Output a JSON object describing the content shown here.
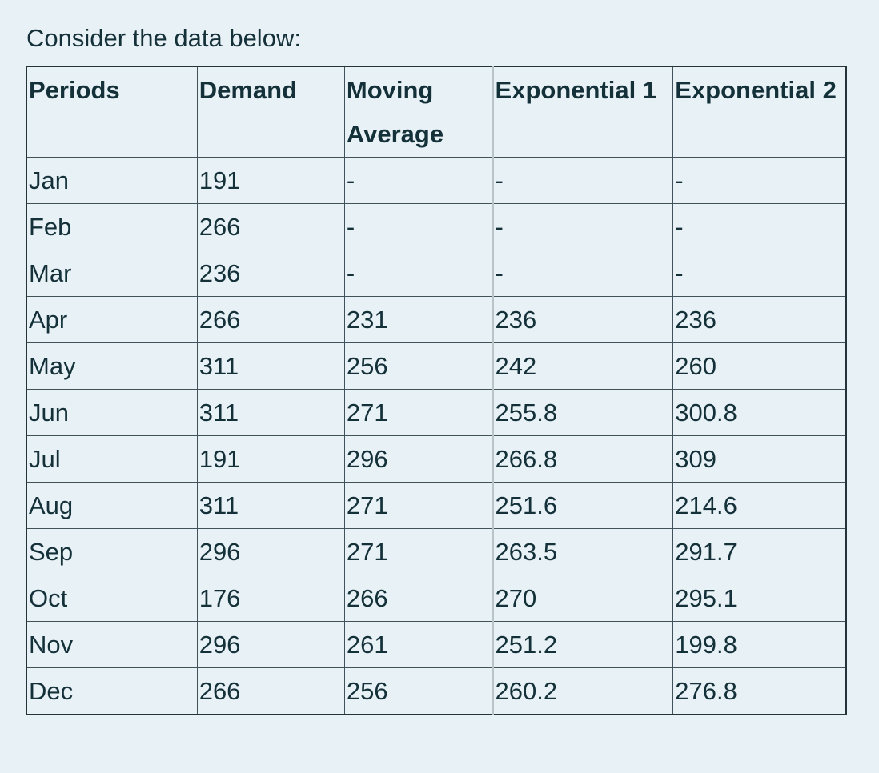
{
  "colors": {
    "background": "#e8f1f5",
    "text": "#14313a",
    "border_outer": "#25333a",
    "border_inner": "#42525a",
    "border_light": "#b9c4c8"
  },
  "page": {
    "title": "Consider the data below:"
  },
  "table": {
    "columns": [
      {
        "key": "periods",
        "label": "Periods"
      },
      {
        "key": "demand",
        "label": "Demand"
      },
      {
        "key": "moving_average",
        "label": "Moving Average"
      },
      {
        "key": "exponential_1",
        "label": "Exponential 1"
      },
      {
        "key": "exponential_2",
        "label": "Exponential 2"
      }
    ],
    "rows": [
      [
        "Jan",
        "191",
        "-",
        "-",
        "-"
      ],
      [
        "Feb",
        "266",
        "-",
        "-",
        "-"
      ],
      [
        "Mar",
        "236",
        "-",
        "-",
        "-"
      ],
      [
        "Apr",
        "266",
        "231",
        "236",
        "236"
      ],
      [
        "May",
        "311",
        "256",
        "242",
        "260"
      ],
      [
        "Jun",
        "311",
        "271",
        "255.8",
        "300.8"
      ],
      [
        "Jul",
        "191",
        "296",
        "266.8",
        "309"
      ],
      [
        "Aug",
        "311",
        "271",
        "251.6",
        "214.6"
      ],
      [
        "Sep",
        "296",
        "271",
        "263.5",
        "291.7"
      ],
      [
        "Oct",
        "176",
        "266",
        "270",
        "295.1"
      ],
      [
        "Nov",
        "296",
        "261",
        "251.2",
        "199.8"
      ],
      [
        "Dec",
        "266",
        "256",
        "260.2",
        "276.8"
      ]
    ]
  }
}
